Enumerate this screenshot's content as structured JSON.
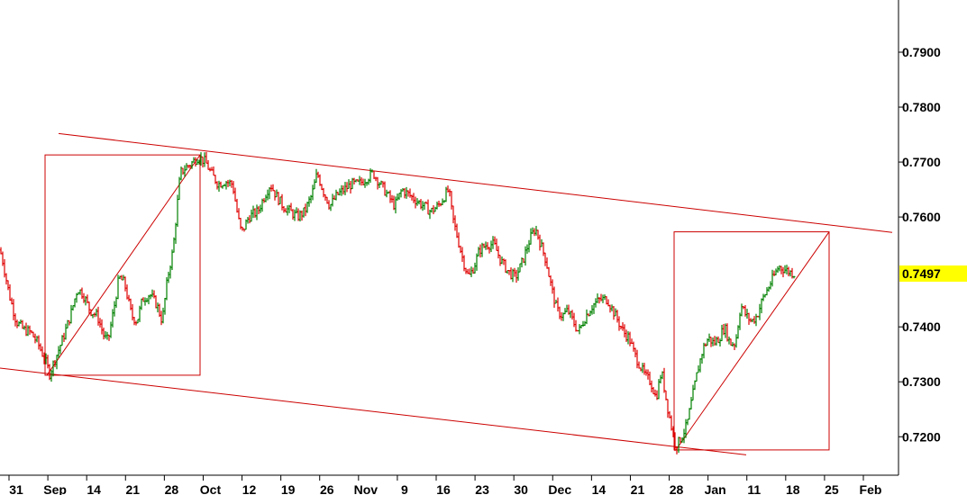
{
  "chart_data": {
    "type": "ohlc",
    "ylim": [
      0.713,
      0.7995
    ],
    "yticks": [
      {
        "value": 0.79,
        "label": "0.7900"
      },
      {
        "value": 0.78,
        "label": "0.7800"
      },
      {
        "value": 0.77,
        "label": "0.7700"
      },
      {
        "value": 0.76,
        "label": "0.7600"
      },
      {
        "value": 0.74,
        "label": "0.7400"
      },
      {
        "value": 0.73,
        "label": "0.7300"
      },
      {
        "value": 0.72,
        "label": "0.7200"
      }
    ],
    "last_price": {
      "value": 0.7497,
      "label": "0.7497",
      "color": "#ffff00"
    },
    "xticks": [
      "31",
      "Sep",
      "14",
      "21",
      "28",
      "Oct",
      "12",
      "19",
      "26",
      "Nov",
      "9",
      "16",
      "23",
      "30",
      "Dec",
      "14",
      "21",
      "28",
      "Jan",
      "11",
      "18",
      "25",
      "Feb"
    ],
    "colors": {
      "up": "#008000",
      "down": "#e00000",
      "annotation": "#cc0000"
    },
    "path": [
      [
        0,
        0.754
      ],
      [
        3,
        0.752
      ],
      [
        10,
        0.746
      ],
      [
        18,
        0.741
      ],
      [
        26,
        0.7395
      ],
      [
        34,
        0.739
      ],
      [
        42,
        0.737
      ],
      [
        50,
        0.734
      ],
      [
        55,
        0.7315
      ],
      [
        62,
        0.7345
      ],
      [
        70,
        0.738
      ],
      [
        78,
        0.742
      ],
      [
        86,
        0.747
      ],
      [
        92,
        0.746
      ],
      [
        100,
        0.743
      ],
      [
        108,
        0.742
      ],
      [
        116,
        0.738
      ],
      [
        120,
        0.7375
      ],
      [
        126,
        0.743
      ],
      [
        132,
        0.749
      ],
      [
        138,
        0.748
      ],
      [
        146,
        0.742
      ],
      [
        152,
        0.741
      ],
      [
        158,
        0.745
      ],
      [
        166,
        0.746
      ],
      [
        174,
        0.744
      ],
      [
        180,
        0.741
      ],
      [
        186,
        0.749
      ],
      [
        192,
        0.754
      ],
      [
        196,
        0.761
      ],
      [
        200,
        0.768
      ],
      [
        206,
        0.769
      ],
      [
        214,
        0.77
      ],
      [
        220,
        0.771
      ],
      [
        228,
        0.77
      ],
      [
        234,
        0.768
      ],
      [
        242,
        0.766
      ],
      [
        250,
        0.7665
      ],
      [
        258,
        0.766
      ],
      [
        264,
        0.76
      ],
      [
        268,
        0.757
      ],
      [
        276,
        0.76
      ],
      [
        286,
        0.761
      ],
      [
        294,
        0.764
      ],
      [
        300,
        0.766
      ],
      [
        306,
        0.764
      ],
      [
        314,
        0.762
      ],
      [
        322,
        0.761
      ],
      [
        330,
        0.76
      ],
      [
        338,
        0.761
      ],
      [
        346,
        0.764
      ],
      [
        352,
        0.768
      ],
      [
        358,
        0.765
      ],
      [
        366,
        0.762
      ],
      [
        374,
        0.764
      ],
      [
        382,
        0.765
      ],
      [
        390,
        0.766
      ],
      [
        398,
        0.766
      ],
      [
        406,
        0.767
      ],
      [
        414,
        0.768
      ],
      [
        422,
        0.766
      ],
      [
        430,
        0.764
      ],
      [
        438,
        0.762
      ],
      [
        446,
        0.765
      ],
      [
        454,
        0.764
      ],
      [
        462,
        0.763
      ],
      [
        470,
        0.762
      ],
      [
        478,
        0.761
      ],
      [
        486,
        0.762
      ],
      [
        494,
        0.764
      ],
      [
        498,
        0.765
      ],
      [
        502,
        0.76
      ],
      [
        508,
        0.756
      ],
      [
        514,
        0.752
      ],
      [
        520,
        0.749
      ],
      [
        526,
        0.751
      ],
      [
        532,
        0.754
      ],
      [
        540,
        0.755
      ],
      [
        548,
        0.755
      ],
      [
        556,
        0.752
      ],
      [
        564,
        0.75
      ],
      [
        572,
        0.749
      ],
      [
        580,
        0.752
      ],
      [
        588,
        0.756
      ],
      [
        594,
        0.758
      ],
      [
        600,
        0.755
      ],
      [
        606,
        0.752
      ],
      [
        612,
        0.747
      ],
      [
        618,
        0.743
      ],
      [
        624,
        0.742
      ],
      [
        630,
        0.743
      ],
      [
        636,
        0.741
      ],
      [
        642,
        0.739
      ],
      [
        650,
        0.742
      ],
      [
        658,
        0.744
      ],
      [
        666,
        0.745
      ],
      [
        674,
        0.745
      ],
      [
        680,
        0.743
      ],
      [
        686,
        0.741
      ],
      [
        692,
        0.739
      ],
      [
        698,
        0.738
      ],
      [
        704,
        0.735
      ],
      [
        710,
        0.733
      ],
      [
        716,
        0.731
      ],
      [
        722,
        0.73
      ],
      [
        728,
        0.727
      ],
      [
        734,
        0.732
      ],
      [
        740,
        0.726
      ],
      [
        746,
        0.721
      ],
      [
        750,
        0.718
      ],
      [
        756,
        0.72
      ],
      [
        762,
        0.722
      ],
      [
        768,
        0.727
      ],
      [
        774,
        0.732
      ],
      [
        780,
        0.736
      ],
      [
        786,
        0.738
      ],
      [
        792,
        0.737
      ],
      [
        798,
        0.738
      ],
      [
        804,
        0.74
      ],
      [
        810,
        0.737
      ],
      [
        816,
        0.737
      ],
      [
        822,
        0.744
      ],
      [
        828,
        0.742
      ],
      [
        834,
        0.741
      ],
      [
        840,
        0.742
      ],
      [
        846,
        0.745
      ],
      [
        852,
        0.747
      ],
      [
        858,
        0.749
      ],
      [
        864,
        0.751
      ],
      [
        870,
        0.7505
      ],
      [
        876,
        0.75
      ],
      [
        882,
        0.7497
      ]
    ],
    "annotations": {
      "upper_channel_line": [
        [
          65,
          0.7752
        ],
        [
          990,
          0.7572
        ]
      ],
      "lower_channel_line": [
        [
          0,
          0.7325
        ],
        [
          828,
          0.7167
        ]
      ],
      "box_left": {
        "x1": 50,
        "x2": 222,
        "y1": 0.7312,
        "y2": 0.7713
      },
      "box_right": {
        "x1": 748,
        "x2": 920,
        "y1": 0.7176,
        "y2": 0.7573
      },
      "diag_left": [
        [
          52,
          0.7312
        ],
        [
          222,
          0.7713
        ]
      ],
      "diag_right": [
        [
          750,
          0.7176
        ],
        [
          920,
          0.7573
        ]
      ]
    }
  }
}
